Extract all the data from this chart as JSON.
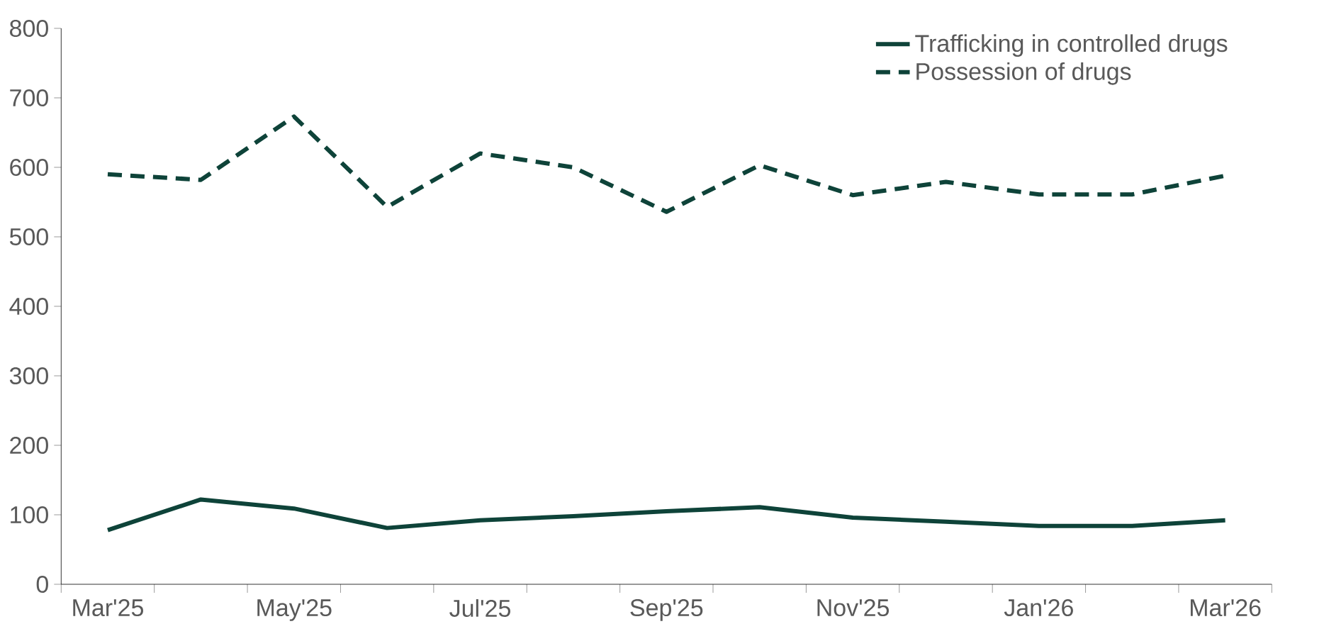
{
  "chart_data": {
    "type": "line",
    "categories": [
      "Mar'25",
      null,
      "May'25",
      null,
      "Jul'25",
      null,
      "Sep'25",
      null,
      "Nov'25",
      null,
      "Jan'26",
      null,
      "Mar'26"
    ],
    "series": [
      {
        "name": "Trafficking in controlled drugs",
        "color": "#0e4339",
        "line_style": "solid",
        "values": [
          78,
          122,
          109,
          81,
          92,
          98,
          105,
          111,
          96,
          90,
          84,
          84,
          92
        ]
      },
      {
        "name": "Possession of drugs",
        "color": "#0e4339",
        "line_style": "dashed",
        "values": [
          590,
          582,
          673,
          543,
          620,
          600,
          536,
          603,
          560,
          579,
          561,
          561,
          588
        ]
      }
    ],
    "ylim": [
      0,
      800
    ],
    "yticks": [
      0,
      100,
      200,
      300,
      400,
      500,
      600,
      700,
      800
    ],
    "legend": "top right",
    "marker": "none",
    "grid": false
  }
}
